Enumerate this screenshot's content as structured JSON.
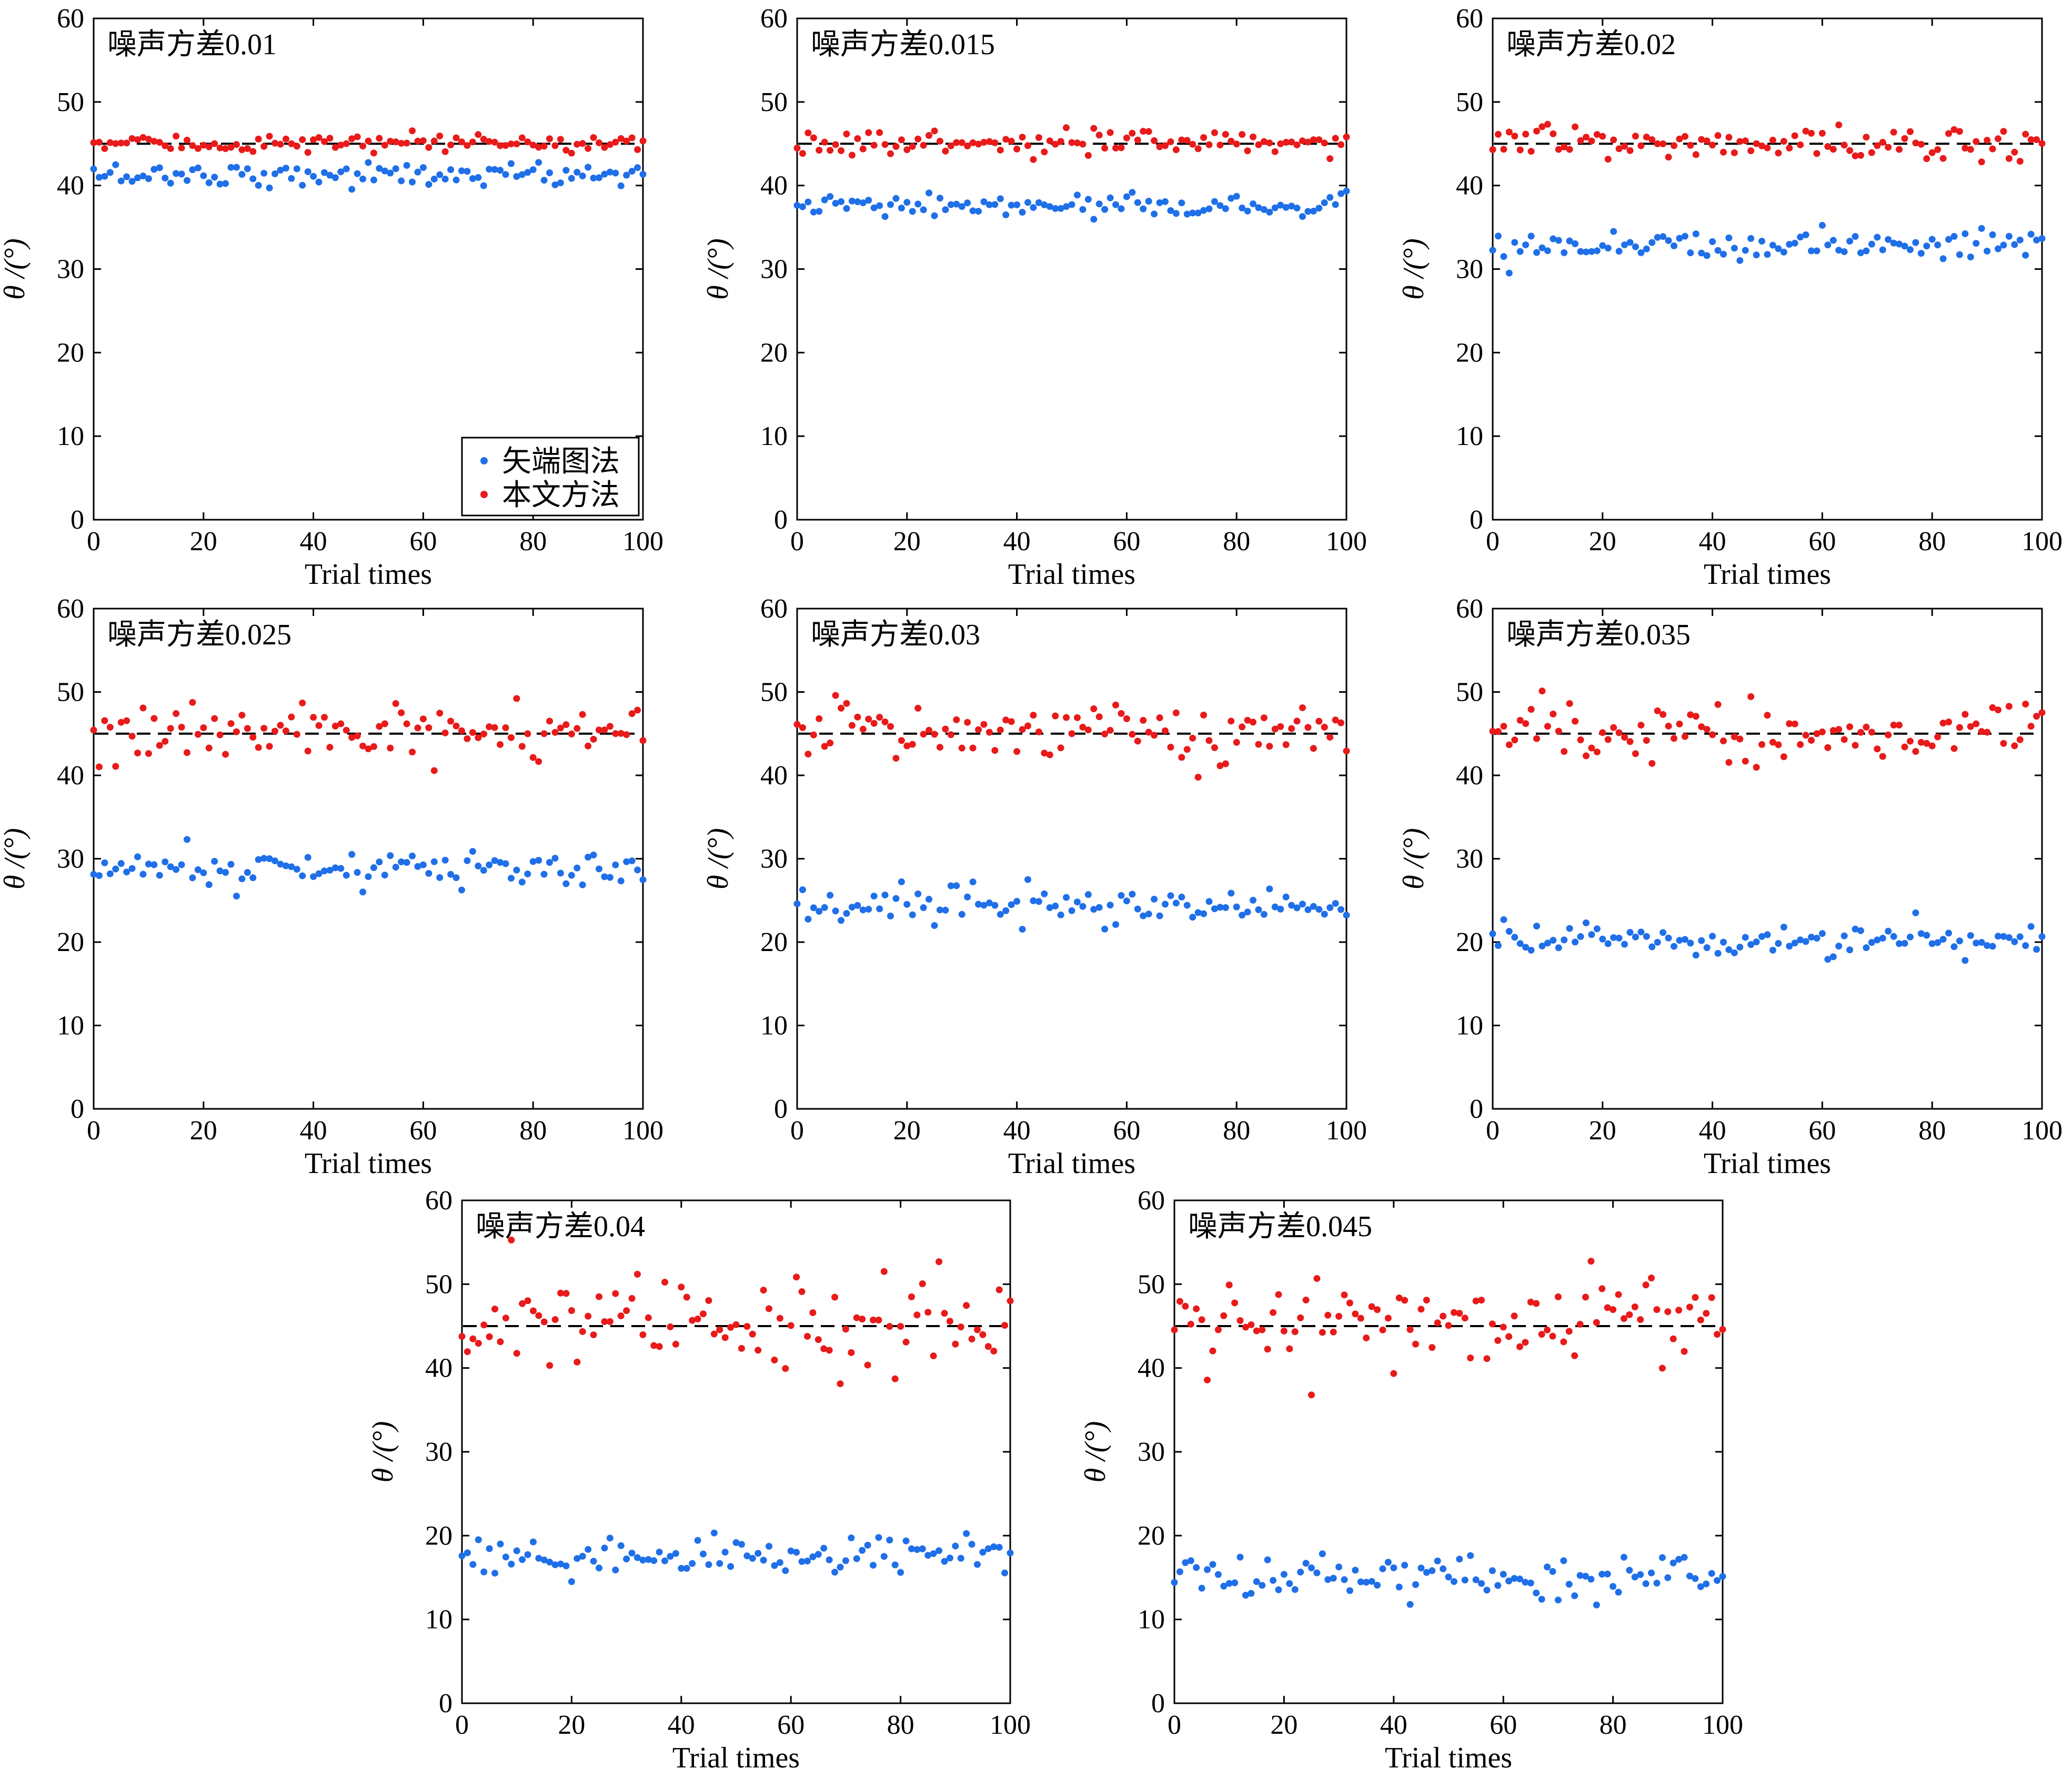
{
  "figure": {
    "legend": {
      "items": [
        {
          "label": "矢端图法",
          "color": "#1f6fe8"
        },
        {
          "label": "本文方法",
          "color": "#e81a1a"
        }
      ]
    },
    "reference_line": {
      "y": 45,
      "color": "#000000",
      "style": "dashed"
    },
    "colors": {
      "vector_method": "#1f6fe8",
      "proposed_method": "#e81a1a"
    }
  },
  "chart_data": [
    {
      "type": "scatter",
      "annotation": "噪声方差0.01",
      "xlabel": "Trial times",
      "ylabel": "θ /(°)",
      "xlim": [
        0,
        100
      ],
      "ylim": [
        0,
        60
      ],
      "xticks": [
        0,
        20,
        40,
        60,
        80,
        100
      ],
      "yticks": [
        0,
        10,
        20,
        30,
        40,
        50,
        60
      ],
      "grid": false,
      "legend_position": "bottom-right",
      "reference_y": 45,
      "series": [
        {
          "name": "矢端图法",
          "mean": 41.3,
          "spread": 0.7,
          "values": []
        },
        {
          "name": "本文方法",
          "mean": 45.0,
          "spread": 0.5,
          "values": []
        }
      ]
    },
    {
      "type": "scatter",
      "annotation": "噪声方差0.015",
      "xlabel": "Trial times",
      "ylabel": "θ /(°)",
      "xlim": [
        0,
        100
      ],
      "ylim": [
        0,
        60
      ],
      "xticks": [
        0,
        20,
        40,
        60,
        80,
        100
      ],
      "yticks": [
        0,
        10,
        20,
        30,
        40,
        50,
        60
      ],
      "grid": false,
      "reference_y": 45,
      "series": [
        {
          "name": "矢端图法",
          "mean": 37.5,
          "spread": 0.7,
          "values": []
        },
        {
          "name": "本文方法",
          "mean": 45.0,
          "spread": 0.7,
          "values": []
        }
      ]
    },
    {
      "type": "scatter",
      "annotation": "噪声方差0.02",
      "xlabel": "Trial times",
      "ylabel": "θ /(°)",
      "xlim": [
        0,
        100
      ],
      "ylim": [
        0,
        60
      ],
      "xticks": [
        0,
        20,
        40,
        60,
        80,
        100
      ],
      "yticks": [
        0,
        10,
        20,
        30,
        40,
        50,
        60
      ],
      "grid": false,
      "reference_y": 45,
      "series": [
        {
          "name": "矢端图法",
          "mean": 33.0,
          "spread": 1.0,
          "values": []
        },
        {
          "name": "本文方法",
          "mean": 45.0,
          "spread": 1.1,
          "values": []
        }
      ]
    },
    {
      "type": "scatter",
      "annotation": "噪声方差0.025",
      "xlabel": "Trial times",
      "ylabel": "θ /(°)",
      "xlim": [
        0,
        100
      ],
      "ylim": [
        0,
        60
      ],
      "xticks": [
        0,
        20,
        40,
        60,
        80,
        100
      ],
      "yticks": [
        0,
        10,
        20,
        30,
        40,
        50,
        60
      ],
      "grid": false,
      "reference_y": 45,
      "series": [
        {
          "name": "矢端图法",
          "mean": 28.8,
          "spread": 1.2,
          "values": []
        },
        {
          "name": "本文方法",
          "mean": 45.0,
          "spread": 1.5,
          "values": []
        }
      ]
    },
    {
      "type": "scatter",
      "annotation": "噪声方差0.03",
      "xlabel": "Trial times",
      "ylabel": "θ /(°)",
      "xlim": [
        0,
        100
      ],
      "ylim": [
        0,
        60
      ],
      "xticks": [
        0,
        20,
        40,
        60,
        80,
        100
      ],
      "yticks": [
        0,
        10,
        20,
        30,
        40,
        50,
        60
      ],
      "grid": false,
      "reference_y": 45,
      "series": [
        {
          "name": "矢端图法",
          "mean": 24.2,
          "spread": 1.2,
          "values": []
        },
        {
          "name": "本文方法",
          "mean": 45.0,
          "spread": 1.6,
          "values": []
        }
      ]
    },
    {
      "type": "scatter",
      "annotation": "噪声方差0.035",
      "xlabel": "Trial times",
      "ylabel": "θ /(°)",
      "xlim": [
        0,
        100
      ],
      "ylim": [
        0,
        60
      ],
      "xticks": [
        0,
        20,
        40,
        60,
        80,
        100
      ],
      "yticks": [
        0,
        10,
        20,
        30,
        40,
        50,
        60
      ],
      "grid": false,
      "reference_y": 45,
      "series": [
        {
          "name": "矢端图法",
          "mean": 20.3,
          "spread": 1.1,
          "values": []
        },
        {
          "name": "本文方法",
          "mean": 45.0,
          "spread": 2.0,
          "values": []
        }
      ]
    },
    {
      "type": "scatter",
      "annotation": "噪声方差0.04",
      "xlabel": "Trial times",
      "ylabel": "θ /(°)",
      "xlim": [
        0,
        100
      ],
      "ylim": [
        0,
        60
      ],
      "xticks": [
        0,
        20,
        40,
        60,
        80,
        100
      ],
      "yticks": [
        0,
        10,
        20,
        30,
        40,
        50,
        60
      ],
      "grid": false,
      "reference_y": 45,
      "series": [
        {
          "name": "矢端图法",
          "mean": 17.5,
          "spread": 1.2,
          "values": []
        },
        {
          "name": "本文方法",
          "mean": 45.0,
          "spread": 2.6,
          "values": []
        }
      ]
    },
    {
      "type": "scatter",
      "annotation": "噪声方差0.045",
      "xlabel": "Trial times",
      "ylabel": "θ /(°)",
      "xlim": [
        0,
        100
      ],
      "ylim": [
        0,
        60
      ],
      "xticks": [
        0,
        20,
        40,
        60,
        80,
        100
      ],
      "yticks": [
        0,
        10,
        20,
        30,
        40,
        50,
        60
      ],
      "grid": false,
      "reference_y": 45,
      "series": [
        {
          "name": "矢端图法",
          "mean": 15.0,
          "spread": 1.3,
          "values": []
        },
        {
          "name": "本文方法",
          "mean": 45.5,
          "spread": 2.8,
          "values": []
        }
      ]
    }
  ]
}
